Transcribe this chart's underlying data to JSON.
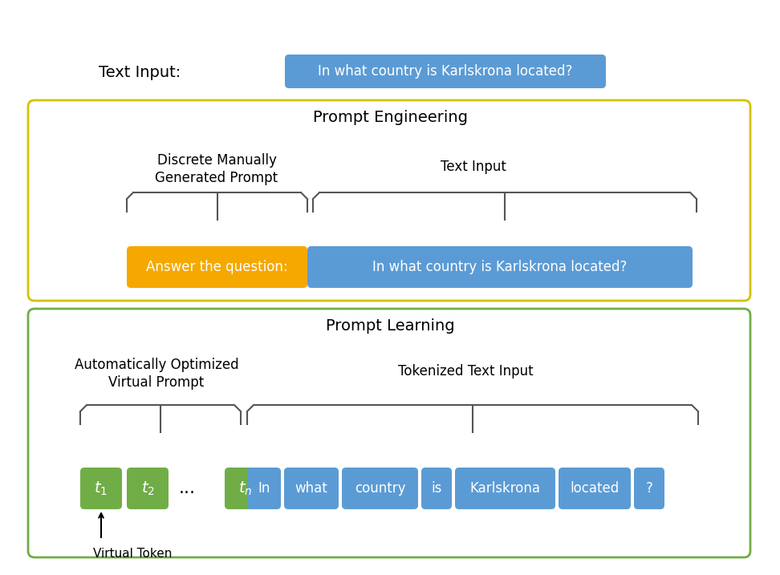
{
  "bg_color": "#ffffff",
  "title_top": "Text Input:",
  "top_question": "In what country is Karlskrona located?",
  "top_q_color": "#5b9bd5",
  "top_q_text_color": "#ffffff",
  "section1_title": "Prompt Engineering",
  "section1_border": "#d4c200",
  "section1_bg": "#ffffff",
  "label1_line1": "Discrete Manually",
  "label1_line2": "Generated Prompt",
  "label2": "Text Input",
  "orange_box_text": "Answer the question:",
  "orange_box_color": "#f5a800",
  "orange_box_text_color": "#ffffff",
  "blue_box1_text": "In what country is Karlskrona located?",
  "blue_box1_color": "#5b9bd5",
  "blue_box1_text_color": "#ffffff",
  "section2_title": "Prompt Learning",
  "section2_border": "#70ad47",
  "section2_bg": "#ffffff",
  "label3_line1": "Automatically Optimized",
  "label3_line2": "Virtual Prompt",
  "label4": "Tokenized Text Input",
  "green_color": "#70ad47",
  "green_text_color": "#ffffff",
  "blue_tokens": [
    "In",
    "what",
    "country",
    "is",
    "Karlskrona",
    "located",
    "?"
  ],
  "blue_token_color": "#5b9bd5",
  "blue_token_text_color": "#ffffff",
  "virtual_token_label": "Virtual Token",
  "font_name": "DejaVu Sans"
}
